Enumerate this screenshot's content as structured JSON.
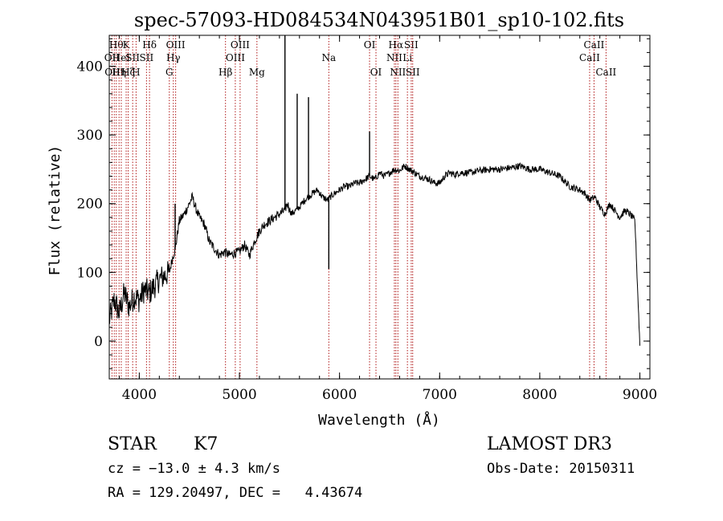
{
  "chart_data": {
    "type": "line",
    "title": "spec-57093-HD084534N043951B01_sp10-102.fits",
    "xlabel": "Wavelength (Å)",
    "ylabel": "Flux (relative)",
    "xlim": [
      3700,
      9100
    ],
    "ylim": [
      -55,
      445
    ],
    "x_ticks": [
      4000,
      5000,
      6000,
      7000,
      8000,
      9000
    ],
    "y_ticks": [
      0,
      100,
      200,
      300,
      400
    ],
    "series": [
      {
        "name": "flux",
        "x": [
          3700,
          3750,
          3800,
          3850,
          3900,
          3950,
          4000,
          4050,
          4100,
          4150,
          4200,
          4250,
          4300,
          4330,
          4360,
          4400,
          4450,
          4500,
          4530,
          4560,
          4600,
          4650,
          4700,
          4750,
          4800,
          4850,
          4900,
          4950,
          5000,
          5050,
          5100,
          5150,
          5200,
          5250,
          5300,
          5350,
          5400,
          5450,
          5480,
          5520,
          5560,
          5600,
          5650,
          5690,
          5730,
          5780,
          5830,
          5880,
          5910,
          5950,
          6000,
          6050,
          6100,
          6150,
          6200,
          6250,
          6300,
          6350,
          6400,
          6450,
          6500,
          6550,
          6600,
          6650,
          6700,
          6750,
          6800,
          6850,
          6900,
          6950,
          7000,
          7050,
          7100,
          7150,
          7200,
          7300,
          7400,
          7500,
          7600,
          7700,
          7800,
          7900,
          8000,
          8100,
          8200,
          8300,
          8400,
          8450,
          8500,
          8550,
          8600,
          8650,
          8700,
          8750,
          8800,
          8850,
          8900,
          8950,
          9000
        ],
        "y": [
          30,
          60,
          40,
          70,
          50,
          65,
          60,
          75,
          70,
          80,
          90,
          95,
          100,
          120,
          135,
          175,
          185,
          200,
          210,
          195,
          180,
          170,
          145,
          135,
          125,
          130,
          125,
          128,
          130,
          140,
          125,
          145,
          160,
          170,
          175,
          180,
          185,
          190,
          200,
          185,
          190,
          195,
          205,
          210,
          215,
          220,
          210,
          205,
          210,
          215,
          220,
          225,
          225,
          230,
          230,
          235,
          240,
          235,
          245,
          240,
          245,
          250,
          248,
          255,
          250,
          245,
          240,
          238,
          235,
          230,
          230,
          240,
          245,
          242,
          245,
          245,
          248,
          250,
          250,
          252,
          255,
          250,
          250,
          245,
          240,
          225,
          220,
          215,
          205,
          210,
          195,
          185,
          200,
          190,
          180,
          190,
          185,
          175,
          -5
        ]
      }
    ],
    "spikes": [
      {
        "x": 5455,
        "y": 445
      },
      {
        "x": 5577,
        "y": 360
      },
      {
        "x": 5690,
        "y": 355
      },
      {
        "x": 4358,
        "y": 200
      },
      {
        "x": 6300,
        "y": 305
      }
    ],
    "dips": [
      {
        "x": 5893,
        "y": 105
      }
    ],
    "line_markers": [
      {
        "x": 3727,
        "label": "OII",
        "row": 1
      },
      {
        "x": 3750,
        "label": "OIII",
        "row": 2
      },
      {
        "x": 3770,
        "label": "Hθ",
        "row": 0
      },
      {
        "x": 3798,
        "label": "Hη",
        "row": 2
      },
      {
        "x": 3820,
        "label": "HeI",
        "row": 1
      },
      {
        "x": 3869,
        "label": "K",
        "row": 0
      },
      {
        "x": 3889,
        "label": "Hζ",
        "row": 2
      },
      {
        "x": 3934,
        "label": "SII",
        "row": 1
      },
      {
        "x": 3968,
        "label": "H",
        "row": 2
      },
      {
        "x": 4102,
        "label": "Hδ",
        "row": 0
      },
      {
        "x": 4072,
        "label": "SII",
        "row": 1
      },
      {
        "x": 4300,
        "label": "G",
        "row": 2
      },
      {
        "x": 4340,
        "label": "Hγ",
        "row": 1
      },
      {
        "x": 4363,
        "label": "OIII",
        "row": 0
      },
      {
        "x": 4861,
        "label": "Hβ",
        "row": 2
      },
      {
        "x": 4959,
        "label": "OIII",
        "row": 1
      },
      {
        "x": 5007,
        "label": "OIII",
        "row": 0
      },
      {
        "x": 5175,
        "label": "Mg",
        "row": 2
      },
      {
        "x": 5893,
        "label": "Na",
        "row": 1
      },
      {
        "x": 6300,
        "label": "OI",
        "row": 0
      },
      {
        "x": 6364,
        "label": "OI",
        "row": 2
      },
      {
        "x": 6548,
        "label": "NII",
        "row": 1
      },
      {
        "x": 6563,
        "label": "Hα",
        "row": 0
      },
      {
        "x": 6583,
        "label": "NII",
        "row": 2
      },
      {
        "x": 6678,
        "label": "Li",
        "row": 1
      },
      {
        "x": 6716,
        "label": "SII",
        "row": 0
      },
      {
        "x": 6731,
        "label": "SII",
        "row": 2
      },
      {
        "x": 8498,
        "label": "CaII",
        "row": 1
      },
      {
        "x": 8542,
        "label": "CaII",
        "row": 0
      },
      {
        "x": 8662,
        "label": "CaII",
        "row": 2
      }
    ]
  },
  "info": {
    "object_type": "STAR",
    "subclass": "K7",
    "survey": "LAMOST DR3",
    "cz": "cz = −13.0 ± 4.3 km/s",
    "obs_date": "Obs-Date: 20150311",
    "coords": "RA = 129.20497, DEC =   4.43674"
  }
}
